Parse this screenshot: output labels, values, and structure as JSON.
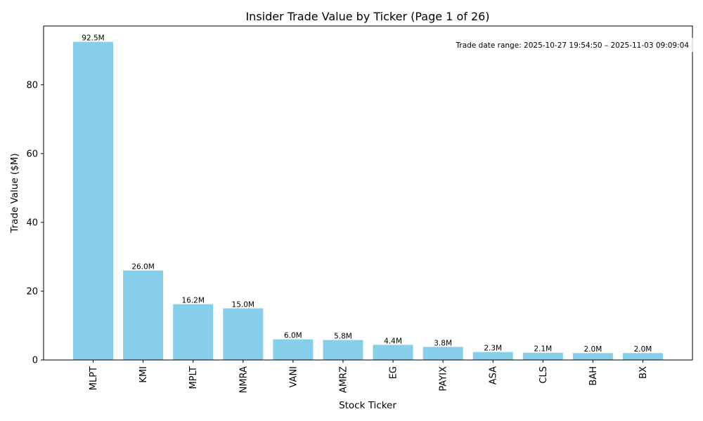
{
  "chart_data": {
    "type": "bar",
    "title": "Insider Trade Value by Ticker (Page 1 of 26)",
    "xlabel": "Stock Ticker",
    "ylabel": "Trade Value ($M)",
    "categories": [
      "MLPT",
      "KMI",
      "MPLT",
      "NMRA",
      "VANI",
      "AMRZ",
      "EG",
      "PAYIX",
      "ASA",
      "CLS",
      "BAH",
      "BX"
    ],
    "values": [
      92.5,
      26.0,
      16.2,
      15.0,
      6.0,
      5.8,
      4.4,
      3.8,
      2.3,
      2.1,
      2.0,
      2.0
    ],
    "data_labels": [
      "92.5M",
      "26.0M",
      "16.2M",
      "15.0M",
      "6.0M",
      "5.8M",
      "4.4M",
      "3.8M",
      "2.3M",
      "2.1M",
      "2.0M",
      "2.0M"
    ],
    "ylim": [
      0,
      97.1
    ],
    "yticks": [
      0,
      20,
      40,
      60,
      80
    ],
    "annotation": "Trade date range: 2025-10-27 19:54:50 – 2025-11-03 09:09:04",
    "annotation_placement": "top-right",
    "bar_color": "#87ceeb",
    "grid": false
  }
}
